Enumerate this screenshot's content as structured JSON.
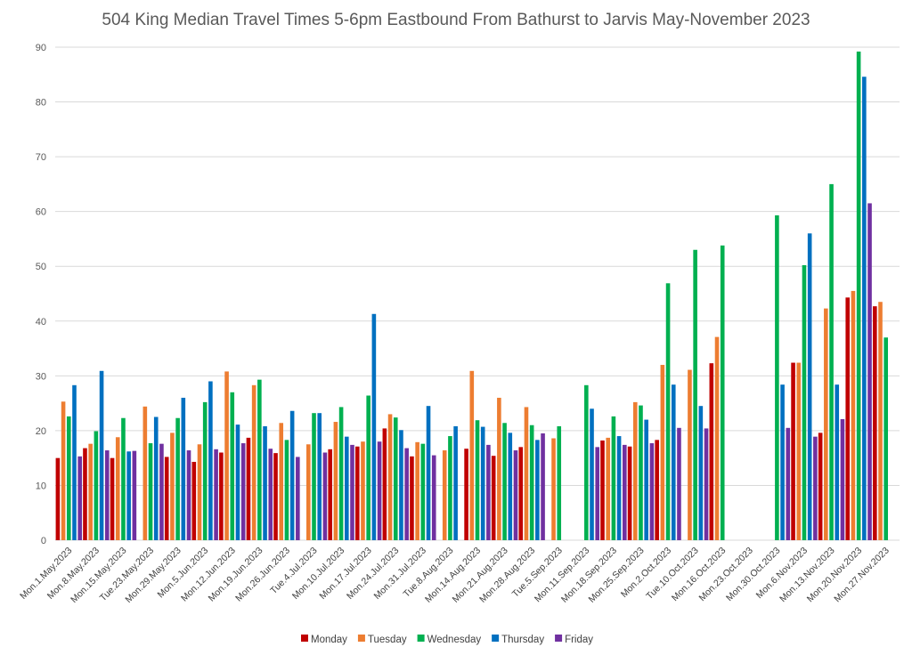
{
  "chart_data": {
    "type": "bar",
    "title": "504 King Median Travel Times 5-6pm Eastbound From Bathurst to Jarvis May-November 2023",
    "xlabel": "",
    "ylabel": "",
    "ylim": [
      0,
      90
    ],
    "yticks": [
      "0",
      "10",
      "20",
      "30",
      "40",
      "50",
      "60",
      "70",
      "80",
      "90"
    ],
    "grid": true,
    "legend_position": "bottom",
    "categories": [
      "Mon.1.May.2023",
      "Mon.8.May.2023",
      "Mon.15.May.2023",
      "Tue.23.May.2023",
      "Mon.29.May.2023",
      "Mon.5.Jun.2023",
      "Mon.12.Jun.2023",
      "Mon.19.Jun.2023",
      "Mon.26.Jun.2023",
      "Tue.4.Jul.2023",
      "Mon.10.Jul.2023",
      "Mon.17.Jul.2023",
      "Mon.24.Jul.2023",
      "Mon.31.Jul.2023",
      "Tue.8.Aug.2023",
      "Mon.14.Aug.2023",
      "Mon.21.Aug.2023",
      "Mon.28.Aug.2023",
      "Tue.5.Sep.2023",
      "Mon.11.Sep.2023",
      "Mon.18.Sep.2023",
      "Mon.25.Sep.2023",
      "Mon.2.Oct.2023",
      "Tue.10.Oct.2023",
      "Mon.16.Oct.2023",
      "Mon.23.Oct.2023",
      "Mon.30.Oct.2023",
      "Mon.6.Nov.2023",
      "Mon.13.Nov.2023",
      "Mon.20.Nov.2023",
      "Mon.27.Nov.2023"
    ],
    "series": [
      {
        "name": "Monday",
        "color": "#c00000",
        "values": [
          15,
          16.8,
          15,
          null,
          15.2,
          14.3,
          16,
          18.7,
          15.9,
          null,
          16.6,
          17.1,
          20.4,
          15.3,
          null,
          16.7,
          15.4,
          17,
          null,
          null,
          18.2,
          17.1,
          18.3,
          null,
          32.3,
          null,
          null,
          32.4,
          19.6,
          44.3,
          42.7
        ]
      },
      {
        "name": "Tuesday",
        "color": "#ed7d31",
        "values": [
          25.3,
          17.6,
          18.8,
          24.4,
          19.6,
          17.5,
          30.8,
          28.3,
          21.4,
          17.5,
          21.6,
          18,
          23,
          17.9,
          16.4,
          30.9,
          26,
          24.3,
          18.6,
          null,
          18.7,
          25.2,
          32,
          31.1,
          37.1,
          null,
          null,
          32.4,
          42.3,
          45.5,
          43.5
        ]
      },
      {
        "name": "Wednesday",
        "color": "#00b050",
        "values": [
          22.6,
          19.9,
          22.3,
          17.7,
          22.3,
          25.2,
          27,
          29.3,
          18.3,
          23.2,
          24.3,
          26.4,
          22.4,
          17.6,
          19,
          21.9,
          21.4,
          21,
          20.8,
          28.3,
          22.6,
          24.6,
          46.9,
          53,
          53.8,
          null,
          59.3,
          50.2,
          65,
          89.2,
          37
        ]
      },
      {
        "name": "Thursday",
        "color": "#0070c0",
        "values": [
          28.3,
          30.9,
          16.2,
          22.5,
          26,
          29,
          21.1,
          20.8,
          23.6,
          23.2,
          18.9,
          41.3,
          20.1,
          24.5,
          20.8,
          20.7,
          19.6,
          18.3,
          null,
          24,
          19,
          22,
          28.4,
          24.5,
          null,
          null,
          28.4,
          56,
          28.4,
          84.6,
          null
        ]
      },
      {
        "name": "Friday",
        "color": "#7030a0",
        "values": [
          15.3,
          16.4,
          16.3,
          17.6,
          16.4,
          16.6,
          17.7,
          16.7,
          15.2,
          16,
          17.4,
          18,
          16.8,
          15.5,
          null,
          17.4,
          16.4,
          19.5,
          null,
          17,
          17.4,
          17.7,
          20.5,
          20.4,
          null,
          null,
          20.5,
          18.9,
          22.1,
          61.5,
          null
        ]
      }
    ]
  }
}
